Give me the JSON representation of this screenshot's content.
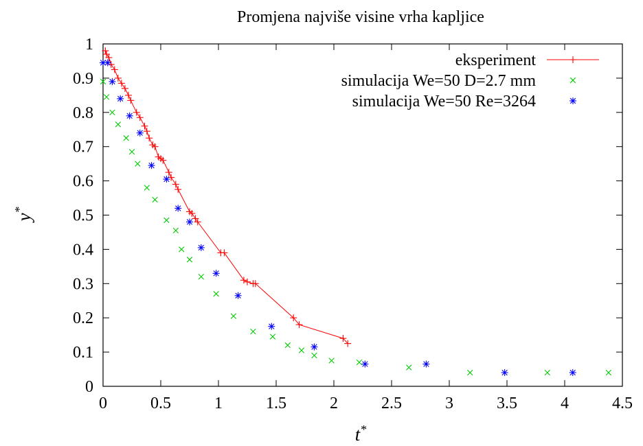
{
  "chart_data": {
    "type": "scatter",
    "title": "Promjena najviše visine vrha kapljice",
    "xlabel": "t*",
    "ylabel": "y*",
    "xlim": [
      0,
      4.5
    ],
    "ylim": [
      0,
      1
    ],
    "x_ticks": [
      "0",
      "0.5",
      "1",
      "1.5",
      "2",
      "2.5",
      "3",
      "3.5",
      "4",
      "4.5"
    ],
    "y_ticks": [
      "0",
      "0.1",
      "0.2",
      "0.3",
      "0.4",
      "0.5",
      "0.6",
      "0.7",
      "0.8",
      "0.9",
      "1"
    ],
    "grid": false,
    "legend_position": "top-right",
    "series": [
      {
        "name": "eksperiment",
        "style": "line+plus",
        "color": "#ff0000",
        "points": [
          [
            0.02,
            0.98
          ],
          [
            0.03,
            0.97
          ],
          [
            0.05,
            0.96
          ],
          [
            0.07,
            0.94
          ],
          [
            0.1,
            0.925
          ],
          [
            0.13,
            0.9
          ],
          [
            0.16,
            0.885
          ],
          [
            0.19,
            0.87
          ],
          [
            0.22,
            0.85
          ],
          [
            0.24,
            0.835
          ],
          [
            0.29,
            0.8
          ],
          [
            0.32,
            0.785
          ],
          [
            0.36,
            0.76
          ],
          [
            0.38,
            0.745
          ],
          [
            0.4,
            0.725
          ],
          [
            0.43,
            0.705
          ],
          [
            0.45,
            0.7
          ],
          [
            0.48,
            0.67
          ],
          [
            0.5,
            0.665
          ],
          [
            0.52,
            0.66
          ],
          [
            0.57,
            0.625
          ],
          [
            0.59,
            0.61
          ],
          [
            0.63,
            0.59
          ],
          [
            0.65,
            0.575
          ],
          [
            0.75,
            0.51
          ],
          [
            0.77,
            0.505
          ],
          [
            0.8,
            0.49
          ],
          [
            0.82,
            0.48
          ],
          [
            1.02,
            0.39
          ],
          [
            1.05,
            0.39
          ],
          [
            1.22,
            0.31
          ],
          [
            1.25,
            0.305
          ],
          [
            1.3,
            0.3
          ],
          [
            1.32,
            0.3
          ],
          [
            1.65,
            0.2
          ],
          [
            1.7,
            0.18
          ],
          [
            2.08,
            0.14
          ],
          [
            2.12,
            0.125
          ]
        ]
      },
      {
        "name": "simulacija We=50 D=2.7 mm",
        "style": "x",
        "color": "#00cc00",
        "points": [
          [
            0.0,
            0.89
          ],
          [
            0.03,
            0.845
          ],
          [
            0.08,
            0.8
          ],
          [
            0.13,
            0.765
          ],
          [
            0.2,
            0.725
          ],
          [
            0.25,
            0.685
          ],
          [
            0.3,
            0.65
          ],
          [
            0.38,
            0.58
          ],
          [
            0.45,
            0.545
          ],
          [
            0.55,
            0.485
          ],
          [
            0.63,
            0.455
          ],
          [
            0.68,
            0.4
          ],
          [
            0.75,
            0.37
          ],
          [
            0.85,
            0.32
          ],
          [
            0.98,
            0.27
          ],
          [
            1.13,
            0.205
          ],
          [
            1.3,
            0.16
          ],
          [
            1.47,
            0.145
          ],
          [
            1.6,
            0.12
          ],
          [
            1.72,
            0.105
          ],
          [
            1.83,
            0.09
          ],
          [
            1.98,
            0.075
          ],
          [
            2.22,
            0.07
          ],
          [
            2.65,
            0.055
          ],
          [
            3.18,
            0.04
          ],
          [
            3.85,
            0.04
          ],
          [
            4.38,
            0.04
          ]
        ]
      },
      {
        "name": "simulacija We=50 Re=3264",
        "style": "star",
        "color": "#0000ff",
        "points": [
          [
            0.0,
            0.945
          ],
          [
            0.04,
            0.945
          ],
          [
            0.08,
            0.89
          ],
          [
            0.15,
            0.84
          ],
          [
            0.23,
            0.79
          ],
          [
            0.32,
            0.74
          ],
          [
            0.42,
            0.645
          ],
          [
            0.55,
            0.605
          ],
          [
            0.65,
            0.52
          ],
          [
            0.75,
            0.48
          ],
          [
            0.85,
            0.405
          ],
          [
            0.98,
            0.33
          ],
          [
            1.17,
            0.265
          ],
          [
            1.46,
            0.175
          ],
          [
            1.83,
            0.115
          ],
          [
            2.27,
            0.065
          ],
          [
            2.8,
            0.065
          ],
          [
            3.48,
            0.04
          ],
          [
            4.07,
            0.04
          ]
        ]
      }
    ]
  }
}
